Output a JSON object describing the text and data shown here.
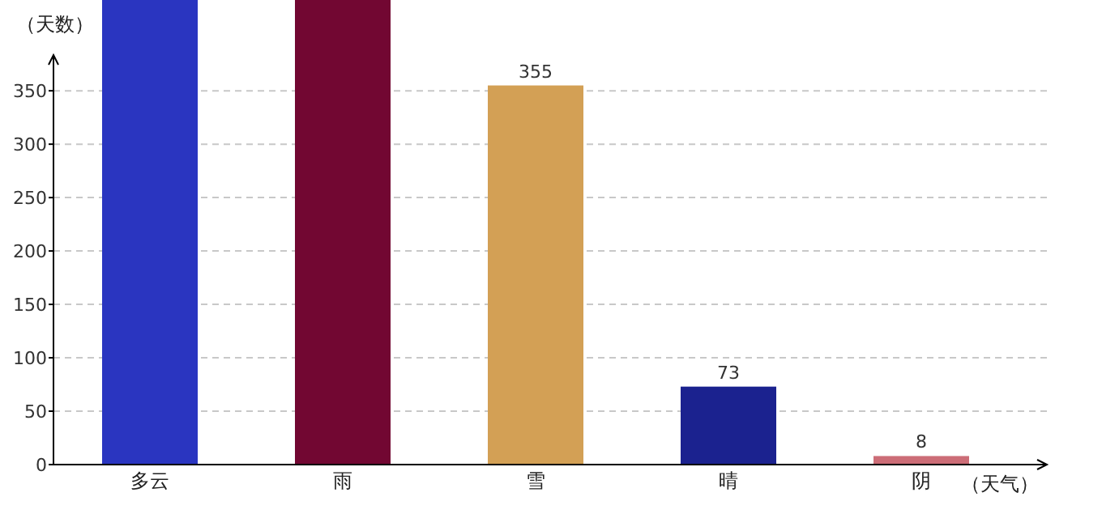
{
  "chart_data": {
    "type": "bar",
    "ylabel": "（天数）",
    "xlabel": "（天气）",
    "categories": [
      "多云",
      "雨",
      "雪",
      "晴",
      "阴"
    ],
    "values": [
      435,
      435,
      355,
      73,
      8
    ],
    "colors": [
      "#2a35c0",
      "#720732",
      "#d3a055",
      "#1b228f",
      "#cc6d77"
    ],
    "value_labels": [
      null,
      null,
      "355",
      "73",
      "8"
    ],
    "ylim": [
      0,
      435
    ],
    "yticks": [
      0,
      50,
      100,
      150,
      200,
      250,
      300,
      350
    ],
    "grid": "y"
  }
}
